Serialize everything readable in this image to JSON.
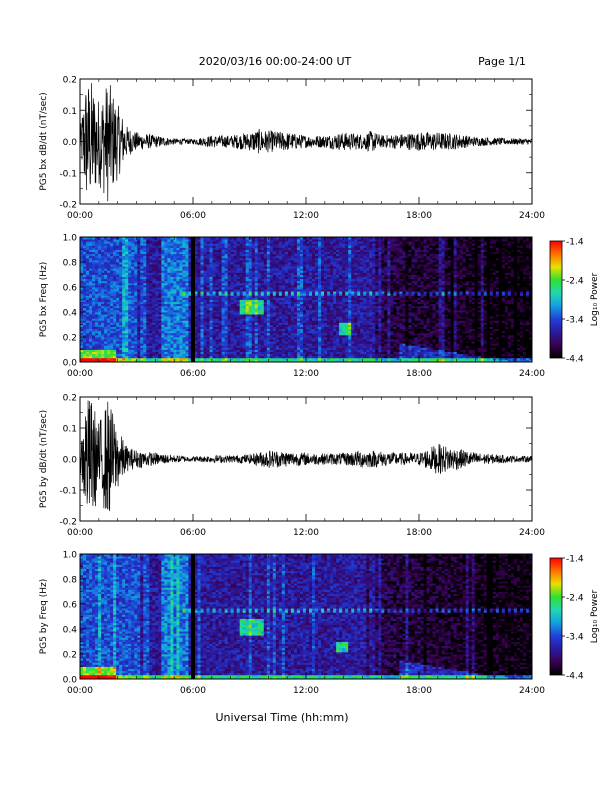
{
  "header": {
    "date_range": "2020/03/16  00:00-24:00 UT",
    "page": "Page 1/1"
  },
  "xlabel": "Universal Time (hh:mm)",
  "colors": {
    "trace": "#000000",
    "colormap": [
      "#000000",
      "#3a0050",
      "#2a1aa0",
      "#2040d8",
      "#10a0e0",
      "#20d8b0",
      "#30e030",
      "#e8e000",
      "#ff7000",
      "#ff0000"
    ]
  },
  "chart_data": [
    {
      "type": "line",
      "ylabel": "PG5 bx dB/dt (nT/sec)",
      "ylim": [
        -0.2,
        0.2
      ],
      "yticks": [
        "0.2",
        "0.1",
        "0.0",
        "-0.1",
        "-0.2"
      ],
      "ytick_values": [
        0.2,
        0.1,
        0.0,
        -0.1,
        -0.2
      ],
      "xlim_hours": [
        0,
        24
      ],
      "xticks": [
        "00:00",
        "06:00",
        "12:00",
        "18:00",
        "24:00"
      ],
      "envelope": {
        "x_hours": [
          0,
          0.3,
          0.6,
          1.0,
          1.5,
          2.0,
          2.5,
          3.0,
          3.5,
          4.0,
          5.0,
          6.0,
          7.0,
          8.0,
          9.0,
          9.5,
          10.0,
          11.0,
          12.0,
          13.0,
          14.0,
          15.0,
          15.5,
          16.0,
          17.0,
          18.0,
          19.0,
          20.0,
          21.0,
          22.0,
          23.0,
          24.0
        ],
        "amplitude": [
          0.03,
          0.2,
          0.2,
          0.14,
          0.2,
          0.12,
          0.05,
          0.03,
          0.025,
          0.02,
          0.01,
          0.008,
          0.02,
          0.02,
          0.03,
          0.04,
          0.035,
          0.03,
          0.02,
          0.02,
          0.03,
          0.025,
          0.035,
          0.02,
          0.025,
          0.03,
          0.03,
          0.025,
          0.015,
          0.012,
          0.01,
          0.01
        ]
      }
    },
    {
      "type": "heatmap",
      "ylabel": "PG5 bx Freq (Hz)",
      "ylim": [
        0,
        1.0
      ],
      "yticks": [
        "1.0",
        "0.8",
        "0.6",
        "0.4",
        "0.2",
        "0.0"
      ],
      "ytick_values": [
        1.0,
        0.8,
        0.6,
        0.4,
        0.2,
        0.0
      ],
      "xlim_hours": [
        0,
        24
      ],
      "xticks": [
        "00:00",
        "06:00",
        "12:00",
        "18:00",
        "24:00"
      ],
      "colorbar": {
        "label": "Log₁₀ Power",
        "range": [
          -4.4,
          -1.4
        ],
        "ticks": [
          "-1.4",
          "-2.4",
          "-3.4",
          "-4.4"
        ],
        "tick_values": [
          -1.4,
          -2.4,
          -3.4,
          -4.4
        ]
      },
      "features": [
        {
          "desc": "data gap",
          "x_hours": 6.0
        },
        {
          "desc": "line",
          "freq_hz": 0.55,
          "x_hours": [
            5.5,
            24
          ]
        },
        {
          "desc": "burst",
          "x_hours": [
            8.5,
            9.7
          ],
          "freq_hz": [
            0.38,
            0.5
          ]
        },
        {
          "desc": "burst",
          "x_hours": [
            13.8,
            14.4
          ],
          "freq_hz": [
            0.22,
            0.32
          ]
        },
        {
          "desc": "rising tone",
          "x_hours": [
            17,
            23
          ],
          "freq_hz": [
            0.0,
            0.15
          ]
        }
      ]
    },
    {
      "type": "line",
      "ylabel": "PG5 by dB/dt (nT/sec)",
      "ylim": [
        -0.2,
        0.2
      ],
      "yticks": [
        "0.2",
        "0.1",
        "0.0",
        "-0.1",
        "-0.2"
      ],
      "ytick_values": [
        0.2,
        0.1,
        0.0,
        -0.1,
        -0.2
      ],
      "xlim_hours": [
        0,
        24
      ],
      "xticks": [
        "00:00",
        "06:00",
        "12:00",
        "18:00",
        "24:00"
      ],
      "envelope": {
        "x_hours": [
          0,
          0.3,
          0.6,
          1.0,
          1.5,
          2.0,
          2.5,
          3.0,
          3.5,
          4.0,
          5.0,
          6.0,
          7.0,
          8.0,
          9.0,
          10.0,
          11.0,
          12.0,
          13.0,
          14.0,
          15.0,
          16.0,
          17.0,
          18.0,
          19.0,
          20.0,
          21.0,
          22.0,
          23.0,
          24.0
        ],
        "amplitude": [
          0.03,
          0.2,
          0.2,
          0.12,
          0.2,
          0.1,
          0.04,
          0.03,
          0.025,
          0.02,
          0.012,
          0.008,
          0.012,
          0.012,
          0.015,
          0.03,
          0.025,
          0.02,
          0.018,
          0.02,
          0.03,
          0.025,
          0.02,
          0.02,
          0.05,
          0.035,
          0.02,
          0.015,
          0.01,
          0.01
        ]
      }
    },
    {
      "type": "heatmap",
      "ylabel": "PG5 by Freq (Hz)",
      "ylim": [
        0,
        1.0
      ],
      "yticks": [
        "1.0",
        "0.8",
        "0.6",
        "0.4",
        "0.2",
        "0.0"
      ],
      "ytick_values": [
        1.0,
        0.8,
        0.6,
        0.4,
        0.2,
        0.0
      ],
      "xlim_hours": [
        0,
        24
      ],
      "xticks": [
        "00:00",
        "06:00",
        "12:00",
        "18:00",
        "24:00"
      ],
      "colorbar": {
        "label": "Log₁₀ Power",
        "range": [
          -4.4,
          -1.4
        ],
        "ticks": [
          "-1.4",
          "-2.4",
          "-3.4",
          "-4.4"
        ],
        "tick_values": [
          -1.4,
          -2.4,
          -3.4,
          -4.4
        ]
      },
      "features": [
        {
          "desc": "data gap",
          "x_hours": 6.0
        },
        {
          "desc": "line",
          "freq_hz": 0.55,
          "x_hours": [
            5.5,
            24
          ]
        },
        {
          "desc": "burst",
          "x_hours": [
            8.5,
            9.7
          ],
          "freq_hz": [
            0.35,
            0.48
          ]
        },
        {
          "desc": "burst",
          "x_hours": [
            13.6,
            14.2
          ],
          "freq_hz": [
            0.22,
            0.3
          ]
        },
        {
          "desc": "rising tone",
          "x_hours": [
            17,
            23
          ],
          "freq_hz": [
            0.0,
            0.15
          ]
        }
      ]
    }
  ]
}
